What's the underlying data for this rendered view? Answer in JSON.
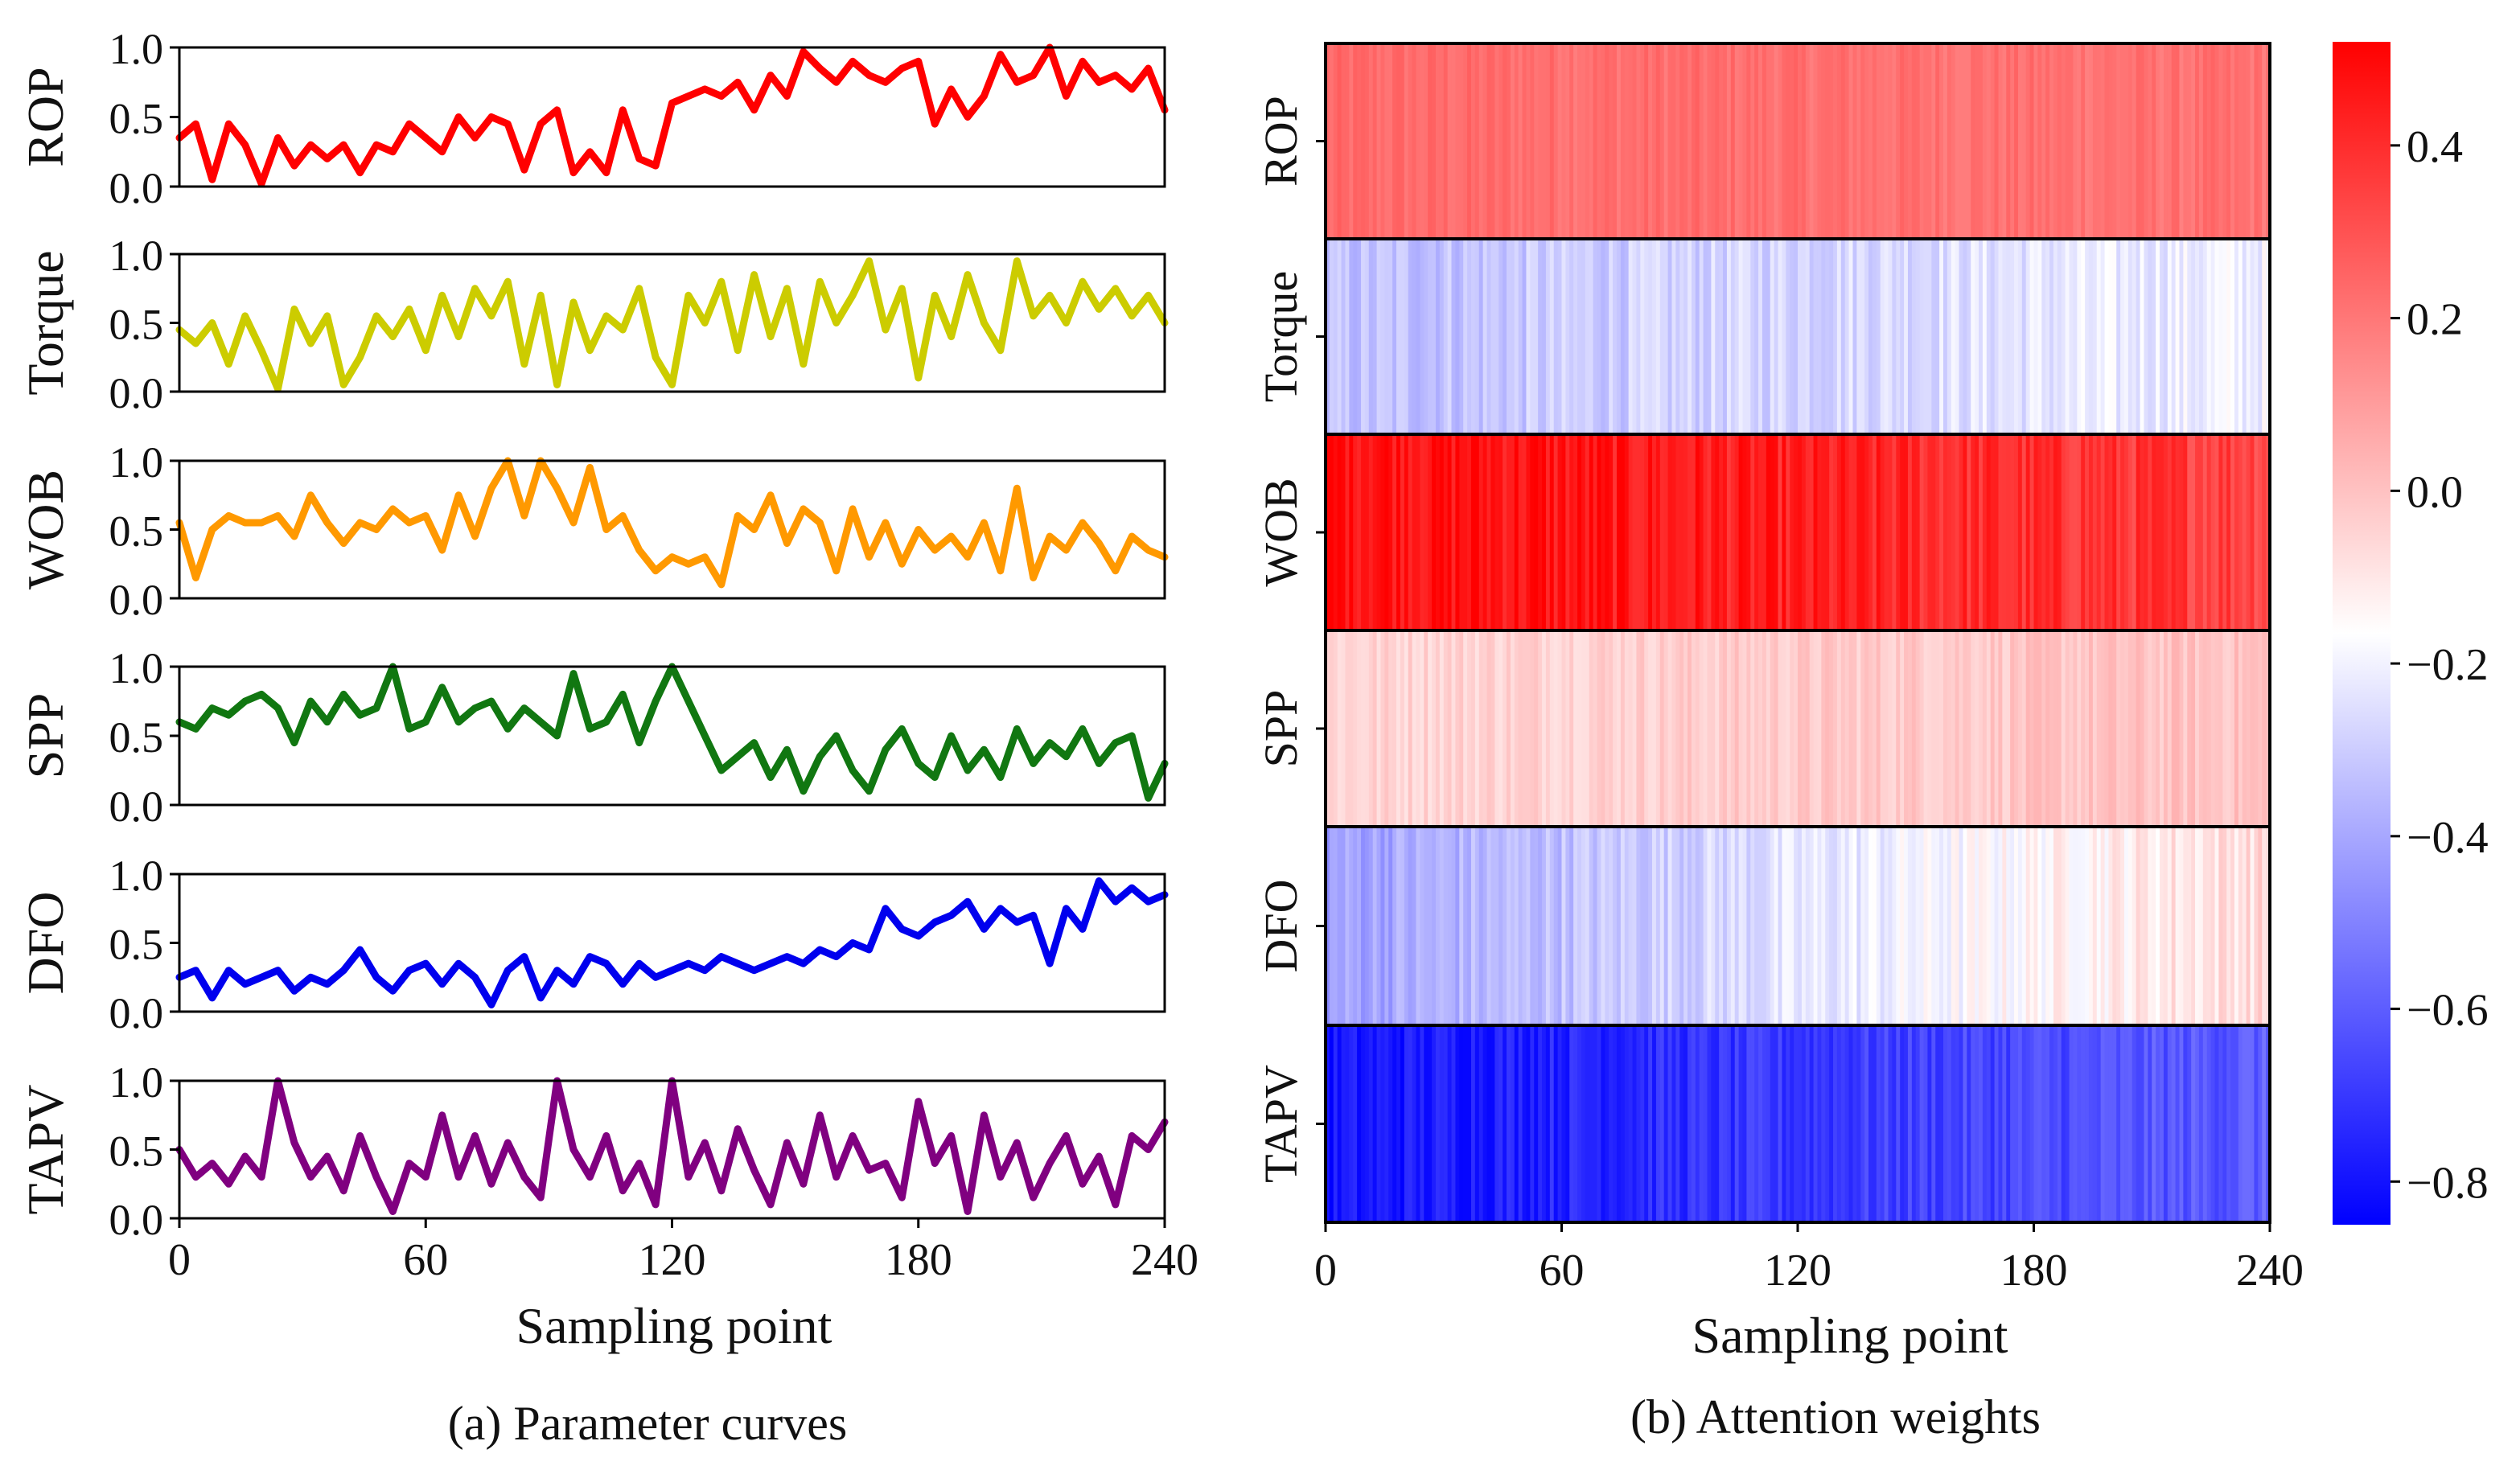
{
  "chart_data": [
    {
      "type": "line",
      "caption": "(a) Parameter curves",
      "xlabel": "Sampling point",
      "x_ticks": [
        0,
        60,
        120,
        180,
        240
      ],
      "xlim": [
        0,
        240
      ],
      "ylim": [
        0,
        1
      ],
      "y_ticks": [
        "0.0",
        "0.5",
        "1.0"
      ],
      "series": [
        {
          "name": "ROP",
          "color": "#ff0000",
          "x": [
            0,
            4,
            8,
            12,
            16,
            20,
            24,
            28,
            32,
            36,
            40,
            44,
            48,
            52,
            56,
            60,
            64,
            68,
            72,
            76,
            80,
            84,
            88,
            92,
            96,
            100,
            104,
            108,
            112,
            116,
            120,
            124,
            128,
            132,
            136,
            140,
            144,
            148,
            152,
            156,
            160,
            164,
            168,
            172,
            176,
            180,
            184,
            188,
            192,
            196,
            200,
            204,
            208,
            212,
            216,
            220,
            224,
            228,
            232,
            236,
            240
          ],
          "values": [
            0.35,
            0.45,
            0.05,
            0.45,
            0.3,
            0.02,
            0.35,
            0.15,
            0.3,
            0.2,
            0.3,
            0.1,
            0.3,
            0.25,
            0.45,
            0.35,
            0.25,
            0.5,
            0.35,
            0.5,
            0.45,
            0.12,
            0.45,
            0.55,
            0.1,
            0.25,
            0.1,
            0.55,
            0.2,
            0.15,
            0.6,
            0.65,
            0.7,
            0.65,
            0.75,
            0.55,
            0.8,
            0.65,
            0.97,
            0.85,
            0.75,
            0.9,
            0.8,
            0.75,
            0.85,
            0.9,
            0.45,
            0.7,
            0.5,
            0.65,
            0.95,
            0.75,
            0.8,
            1.0,
            0.65,
            0.9,
            0.75,
            0.8,
            0.7,
            0.85,
            0.55
          ]
        },
        {
          "name": "Torque",
          "color": "#cccc00",
          "x": [
            0,
            4,
            8,
            12,
            16,
            20,
            24,
            28,
            32,
            36,
            40,
            44,
            48,
            52,
            56,
            60,
            64,
            68,
            72,
            76,
            80,
            84,
            88,
            92,
            96,
            100,
            104,
            108,
            112,
            116,
            120,
            124,
            128,
            132,
            136,
            140,
            144,
            148,
            152,
            156,
            160,
            164,
            168,
            172,
            176,
            180,
            184,
            188,
            192,
            196,
            200,
            204,
            208,
            212,
            216,
            220,
            224,
            228,
            232,
            236,
            240
          ],
          "values": [
            0.45,
            0.35,
            0.5,
            0.2,
            0.55,
            0.3,
            0.02,
            0.6,
            0.35,
            0.55,
            0.05,
            0.25,
            0.55,
            0.4,
            0.6,
            0.3,
            0.7,
            0.4,
            0.75,
            0.55,
            0.8,
            0.2,
            0.7,
            0.05,
            0.65,
            0.3,
            0.55,
            0.45,
            0.75,
            0.25,
            0.05,
            0.7,
            0.5,
            0.8,
            0.3,
            0.85,
            0.4,
            0.75,
            0.2,
            0.8,
            0.5,
            0.7,
            0.95,
            0.45,
            0.75,
            0.1,
            0.7,
            0.4,
            0.85,
            0.5,
            0.3,
            0.95,
            0.55,
            0.7,
            0.5,
            0.8,
            0.6,
            0.75,
            0.55,
            0.7,
            0.5
          ]
        },
        {
          "name": "WOB",
          "color": "#ff9900",
          "x": [
            0,
            4,
            8,
            12,
            16,
            20,
            24,
            28,
            32,
            36,
            40,
            44,
            48,
            52,
            56,
            60,
            64,
            68,
            72,
            76,
            80,
            84,
            88,
            92,
            96,
            100,
            104,
            108,
            112,
            116,
            120,
            124,
            128,
            132,
            136,
            140,
            144,
            148,
            152,
            156,
            160,
            164,
            168,
            172,
            176,
            180,
            184,
            188,
            192,
            196,
            200,
            204,
            208,
            212,
            216,
            220,
            224,
            228,
            232,
            236,
            240
          ],
          "values": [
            0.55,
            0.15,
            0.5,
            0.6,
            0.55,
            0.55,
            0.6,
            0.45,
            0.75,
            0.55,
            0.4,
            0.55,
            0.5,
            0.65,
            0.55,
            0.6,
            0.35,
            0.75,
            0.45,
            0.8,
            1.0,
            0.6,
            1.0,
            0.8,
            0.55,
            0.95,
            0.5,
            0.6,
            0.35,
            0.2,
            0.3,
            0.25,
            0.3,
            0.1,
            0.6,
            0.5,
            0.75,
            0.4,
            0.65,
            0.55,
            0.2,
            0.65,
            0.3,
            0.55,
            0.25,
            0.5,
            0.35,
            0.45,
            0.3,
            0.55,
            0.2,
            0.8,
            0.15,
            0.45,
            0.35,
            0.55,
            0.4,
            0.2,
            0.45,
            0.35,
            0.3
          ]
        },
        {
          "name": "SPP",
          "color": "#117711",
          "x": [
            0,
            4,
            8,
            12,
            16,
            20,
            24,
            28,
            32,
            36,
            40,
            44,
            48,
            52,
            56,
            60,
            64,
            68,
            72,
            76,
            80,
            84,
            88,
            92,
            96,
            100,
            104,
            108,
            112,
            116,
            120,
            124,
            128,
            132,
            136,
            140,
            144,
            148,
            152,
            156,
            160,
            164,
            168,
            172,
            176,
            180,
            184,
            188,
            192,
            196,
            200,
            204,
            208,
            212,
            216,
            220,
            224,
            228,
            232,
            236,
            240
          ],
          "values": [
            0.6,
            0.55,
            0.7,
            0.65,
            0.75,
            0.8,
            0.7,
            0.45,
            0.75,
            0.6,
            0.8,
            0.65,
            0.7,
            1.0,
            0.55,
            0.6,
            0.85,
            0.6,
            0.7,
            0.75,
            0.55,
            0.7,
            0.6,
            0.5,
            0.95,
            0.55,
            0.6,
            0.8,
            0.45,
            0.75,
            1.0,
            0.75,
            0.5,
            0.25,
            0.35,
            0.45,
            0.2,
            0.4,
            0.1,
            0.35,
            0.5,
            0.25,
            0.1,
            0.4,
            0.55,
            0.3,
            0.2,
            0.5,
            0.25,
            0.4,
            0.2,
            0.55,
            0.3,
            0.45,
            0.35,
            0.55,
            0.3,
            0.45,
            0.5,
            0.05,
            0.3
          ]
        },
        {
          "name": "DFO",
          "color": "#0000ee",
          "x": [
            0,
            4,
            8,
            12,
            16,
            20,
            24,
            28,
            32,
            36,
            40,
            44,
            48,
            52,
            56,
            60,
            64,
            68,
            72,
            76,
            80,
            84,
            88,
            92,
            96,
            100,
            104,
            108,
            112,
            116,
            120,
            124,
            128,
            132,
            136,
            140,
            144,
            148,
            152,
            156,
            160,
            164,
            168,
            172,
            176,
            180,
            184,
            188,
            192,
            196,
            200,
            204,
            208,
            212,
            216,
            220,
            224,
            228,
            232,
            236,
            240
          ],
          "values": [
            0.25,
            0.3,
            0.1,
            0.3,
            0.2,
            0.25,
            0.3,
            0.15,
            0.25,
            0.2,
            0.3,
            0.45,
            0.25,
            0.15,
            0.3,
            0.35,
            0.2,
            0.35,
            0.25,
            0.05,
            0.3,
            0.4,
            0.1,
            0.3,
            0.2,
            0.4,
            0.35,
            0.2,
            0.35,
            0.25,
            0.3,
            0.35,
            0.3,
            0.4,
            0.35,
            0.3,
            0.35,
            0.4,
            0.35,
            0.45,
            0.4,
            0.5,
            0.45,
            0.75,
            0.6,
            0.55,
            0.65,
            0.7,
            0.8,
            0.6,
            0.75,
            0.65,
            0.7,
            0.35,
            0.75,
            0.6,
            0.95,
            0.8,
            0.9,
            0.8,
            0.85
          ]
        },
        {
          "name": "TAPV",
          "color": "#800080",
          "x": [
            0,
            4,
            8,
            12,
            16,
            20,
            24,
            28,
            32,
            36,
            40,
            44,
            48,
            52,
            56,
            60,
            64,
            68,
            72,
            76,
            80,
            84,
            88,
            92,
            96,
            100,
            104,
            108,
            112,
            116,
            120,
            124,
            128,
            132,
            136,
            140,
            144,
            148,
            152,
            156,
            160,
            164,
            168,
            172,
            176,
            180,
            184,
            188,
            192,
            196,
            200,
            204,
            208,
            212,
            216,
            220,
            224,
            228,
            232,
            236,
            240
          ],
          "values": [
            0.5,
            0.3,
            0.4,
            0.25,
            0.45,
            0.3,
            1.0,
            0.55,
            0.3,
            0.45,
            0.2,
            0.6,
            0.3,
            0.05,
            0.4,
            0.3,
            0.75,
            0.3,
            0.6,
            0.25,
            0.55,
            0.3,
            0.15,
            1.0,
            0.5,
            0.3,
            0.6,
            0.2,
            0.4,
            0.1,
            1.0,
            0.3,
            0.55,
            0.2,
            0.65,
            0.35,
            0.1,
            0.55,
            0.25,
            0.75,
            0.3,
            0.6,
            0.35,
            0.4,
            0.15,
            0.85,
            0.4,
            0.6,
            0.05,
            0.75,
            0.3,
            0.55,
            0.15,
            0.4,
            0.6,
            0.25,
            0.45,
            0.1,
            0.6,
            0.5,
            0.7
          ]
        }
      ]
    },
    {
      "type": "heatmap",
      "caption": "(b) Attention weights",
      "xlabel": "Sampling point",
      "x_ticks": [
        0,
        60,
        120,
        180,
        240
      ],
      "xlim": [
        0,
        240
      ],
      "rows": [
        "ROP",
        "Torque",
        "WOB",
        "SPP",
        "DFO",
        "TAPV"
      ],
      "row_mean_start": [
        0.23,
        -0.34,
        0.5,
        -0.05,
        -0.42,
        -0.8
      ],
      "row_mean_end": [
        0.21,
        -0.2,
        0.35,
        0.0,
        -0.06,
        -0.6
      ],
      "row_noise": [
        0.04,
        0.07,
        0.08,
        0.05,
        0.07,
        0.07
      ],
      "colorbar": {
        "vmin": -0.85,
        "vmax": 0.52,
        "ticks": [
          0.4,
          0.2,
          0.0,
          -0.2,
          -0.4,
          -0.6,
          -0.8
        ],
        "tick_labels": [
          "0.4",
          "0.2",
          "0.0",
          "−0.2",
          "−0.4",
          "−0.6",
          "−0.8"
        ],
        "colormap": "bwr",
        "low_color": "#0000ff",
        "mid_color": "#ffffff",
        "high_color": "#ff0000"
      }
    }
  ]
}
